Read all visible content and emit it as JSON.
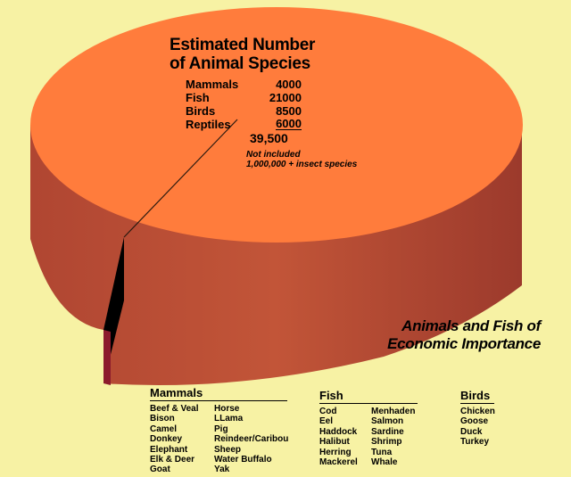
{
  "top": {
    "title_line1": "Estimated Number",
    "title_line2": "of Animal Species",
    "counts": [
      {
        "label": "Mammals",
        "value": "4000"
      },
      {
        "label": "Fish",
        "value": "21000"
      },
      {
        "label": "Birds",
        "value": "8500"
      },
      {
        "label": "Reptiles",
        "value": "6000"
      }
    ],
    "total": "39,500",
    "note_line1": "Not included",
    "note_line2": "1,000,000 + insect species"
  },
  "econ": {
    "title_line1": "Animals and Fish of",
    "title_line2": "Economic Importance",
    "mammals": {
      "heading": "Mammals",
      "col1": [
        "Beef & Veal",
        "Bison",
        "Camel",
        "Donkey",
        "Elephant",
        "Elk & Deer",
        "Goat"
      ],
      "col2": [
        "Horse",
        "LLama",
        "Pig",
        "Reindeer/Caribou",
        "Sheep",
        "Water Buffalo",
        "Yak"
      ]
    },
    "fish": {
      "heading": "Fish",
      "col1": [
        "Cod",
        "Eel",
        "Haddock",
        "Halibut",
        "Herring",
        "Mackerel"
      ],
      "col2": [
        "Menhaden",
        "Salmon",
        "Sardine",
        "Shrimp",
        "Tuna",
        "Whale"
      ]
    },
    "birds": {
      "heading": "Birds",
      "col1": [
        "Chicken",
        "Goose",
        "Duck",
        "Turkey"
      ]
    }
  },
  "colors": {
    "background": "#f7f2a4",
    "top_face": "#ff7c3c",
    "side": "#b84a33",
    "slice_panel": "#000000",
    "slice_edge": "#8c1c2c"
  }
}
